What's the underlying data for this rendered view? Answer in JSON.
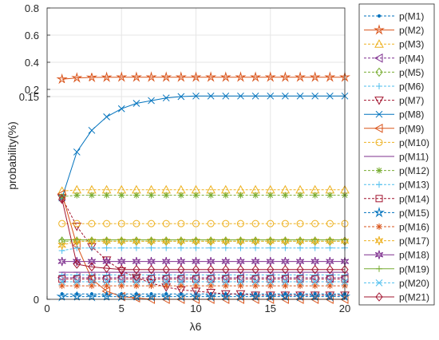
{
  "chart_data": {
    "type": "line",
    "xlabel": "λ6",
    "ylabel": "probability(%)",
    "x_ticks": [
      0,
      5,
      10,
      15,
      20
    ],
    "y_ticks_upper": [
      "0.2",
      "0.4",
      "0.6",
      "0.8"
    ],
    "y_ticks_lower": [
      "0",
      "0.15"
    ],
    "xlim": [
      0,
      20
    ],
    "grid": true,
    "legend": "right",
    "x": [
      1,
      2,
      3,
      4,
      5,
      6,
      7,
      8,
      9,
      10,
      11,
      12,
      13,
      14,
      15,
      16,
      17,
      18,
      19,
      20
    ],
    "series": [
      {
        "name": "p(M1)",
        "color": "#0072BD",
        "marker": "dot",
        "dashed": true,
        "values": [
          0.004,
          0.004,
          0.004,
          0.004,
          0.004,
          0.004,
          0.004,
          0.004,
          0.004,
          0.004,
          0.004,
          0.004,
          0.004,
          0.004,
          0.004,
          0.004,
          0.004,
          0.004,
          0.004,
          0.004
        ]
      },
      {
        "name": "p(M2)",
        "color": "#D95319",
        "marker": "star",
        "dashed": false,
        "values": [
          0.275,
          0.285,
          0.288,
          0.289,
          0.29,
          0.29,
          0.29,
          0.29,
          0.29,
          0.29,
          0.29,
          0.29,
          0.29,
          0.29,
          0.29,
          0.29,
          0.29,
          0.29,
          0.29,
          0.29
        ]
      },
      {
        "name": "p(M3)",
        "color": "#EDB120",
        "marker": "triangle-up",
        "dashed": true,
        "values": [
          0.08,
          0.081,
          0.081,
          0.081,
          0.081,
          0.081,
          0.081,
          0.081,
          0.081,
          0.081,
          0.081,
          0.081,
          0.081,
          0.081,
          0.081,
          0.081,
          0.081,
          0.081,
          0.081,
          0.081
        ]
      },
      {
        "name": "p(M4)",
        "color": "#7E2F8E",
        "marker": "triangle-left",
        "dashed": true,
        "values": [
          0.016,
          0.016,
          0.016,
          0.016,
          0.016,
          0.016,
          0.016,
          0.016,
          0.016,
          0.016,
          0.016,
          0.016,
          0.016,
          0.016,
          0.016,
          0.016,
          0.016,
          0.016,
          0.016,
          0.016
        ]
      },
      {
        "name": "p(M5)",
        "color": "#77AC30",
        "marker": "diamond",
        "dashed": true,
        "values": [
          0.043,
          0.043,
          0.043,
          0.043,
          0.043,
          0.043,
          0.043,
          0.043,
          0.043,
          0.043,
          0.043,
          0.043,
          0.043,
          0.043,
          0.043,
          0.043,
          0.043,
          0.043,
          0.043,
          0.043
        ]
      },
      {
        "name": "p(M6)",
        "color": "#4DBEEE",
        "marker": "plus",
        "dashed": true,
        "values": [
          0.018,
          0.018,
          0.018,
          0.018,
          0.018,
          0.018,
          0.018,
          0.018,
          0.018,
          0.018,
          0.018,
          0.018,
          0.018,
          0.018,
          0.018,
          0.018,
          0.018,
          0.018,
          0.018,
          0.018
        ]
      },
      {
        "name": "p(M7)",
        "color": "#A2142F",
        "marker": "triangle-down",
        "dashed": true,
        "values": [
          0.075,
          0.054,
          0.039,
          0.029,
          0.021,
          0.016,
          0.012,
          0.009,
          0.007,
          0.006,
          0.005,
          0.004,
          0.004,
          0.003,
          0.003,
          0.003,
          0.003,
          0.003,
          0.003,
          0.003
        ]
      },
      {
        "name": "p(M8)",
        "color": "#0072BD",
        "marker": "x",
        "dashed": false,
        "values": [
          0.075,
          0.109,
          0.125,
          0.135,
          0.141,
          0.145,
          0.147,
          0.149,
          0.15,
          0.151,
          0.151,
          0.151,
          0.151,
          0.151,
          0.151,
          0.151,
          0.151,
          0.151,
          0.151,
          0.151
        ]
      },
      {
        "name": "p(M9)",
        "color": "#D95319",
        "marker": "triangle-left",
        "dashed": false,
        "values": [
          0.078,
          0.04,
          0.015,
          0.006,
          0.002,
          0.001,
          0.0,
          0.0,
          0.0,
          0.0,
          0.0,
          0.0,
          0.0,
          0.0,
          0.0,
          0.0,
          0.0,
          0.0,
          0.0,
          0.0
        ]
      },
      {
        "name": "p(M10)",
        "color": "#EDB120",
        "marker": "circle",
        "dashed": true,
        "values": [
          0.056,
          0.056,
          0.056,
          0.056,
          0.056,
          0.056,
          0.056,
          0.056,
          0.056,
          0.056,
          0.056,
          0.056,
          0.056,
          0.056,
          0.056,
          0.056,
          0.056,
          0.056,
          0.056,
          0.056
        ]
      },
      {
        "name": "p(M11)",
        "color": "#7E2F8E",
        "marker": "line",
        "dashed": false,
        "values": [
          0.02,
          0.02,
          0.02,
          0.02,
          0.02,
          0.02,
          0.02,
          0.02,
          0.02,
          0.02,
          0.02,
          0.02,
          0.02,
          0.02,
          0.02,
          0.02,
          0.02,
          0.02,
          0.02,
          0.02
        ]
      },
      {
        "name": "p(M12)",
        "color": "#77AC30",
        "marker": "asterisk",
        "dashed": true,
        "values": [
          0.076,
          0.077,
          0.077,
          0.077,
          0.077,
          0.077,
          0.077,
          0.077,
          0.077,
          0.077,
          0.077,
          0.077,
          0.077,
          0.077,
          0.077,
          0.077,
          0.077,
          0.077,
          0.077,
          0.077
        ]
      },
      {
        "name": "p(M13)",
        "color": "#4DBEEE",
        "marker": "plus",
        "dashed": true,
        "values": [
          0.036,
          0.038,
          0.038,
          0.038,
          0.038,
          0.038,
          0.038,
          0.038,
          0.038,
          0.038,
          0.038,
          0.038,
          0.038,
          0.038,
          0.038,
          0.038,
          0.038,
          0.038,
          0.038,
          0.038
        ]
      },
      {
        "name": "p(M14)",
        "color": "#A2142F",
        "marker": "square",
        "dashed": true,
        "values": [
          0.015,
          0.015,
          0.015,
          0.015,
          0.015,
          0.015,
          0.015,
          0.015,
          0.015,
          0.015,
          0.015,
          0.015,
          0.015,
          0.015,
          0.015,
          0.015,
          0.015,
          0.015,
          0.015,
          0.015
        ]
      },
      {
        "name": "p(M15)",
        "color": "#0072BD",
        "marker": "star",
        "dashed": true,
        "values": [
          0.002,
          0.002,
          0.002,
          0.002,
          0.002,
          0.002,
          0.002,
          0.002,
          0.002,
          0.002,
          0.002,
          0.002,
          0.002,
          0.002,
          0.002,
          0.002,
          0.002,
          0.002,
          0.002,
          0.002
        ]
      },
      {
        "name": "p(M16)",
        "color": "#D95319",
        "marker": "asterisk",
        "dashed": true,
        "values": [
          0.01,
          0.01,
          0.01,
          0.01,
          0.01,
          0.01,
          0.01,
          0.01,
          0.01,
          0.01,
          0.01,
          0.01,
          0.01,
          0.01,
          0.01,
          0.01,
          0.01,
          0.01,
          0.01,
          0.01
        ]
      },
      {
        "name": "p(M17)",
        "color": "#EDB120",
        "marker": "hexagram",
        "dashed": true,
        "values": [
          0.04,
          0.043,
          0.043,
          0.043,
          0.043,
          0.043,
          0.043,
          0.043,
          0.043,
          0.043,
          0.043,
          0.043,
          0.043,
          0.043,
          0.043,
          0.043,
          0.043,
          0.043,
          0.043,
          0.043
        ]
      },
      {
        "name": "p(M18)",
        "color": "#7E2F8E",
        "marker": "hexagram",
        "dashed": false,
        "values": [
          0.028,
          0.028,
          0.028,
          0.028,
          0.028,
          0.028,
          0.028,
          0.028,
          0.028,
          0.028,
          0.028,
          0.028,
          0.028,
          0.028,
          0.028,
          0.028,
          0.028,
          0.028,
          0.028,
          0.028
        ]
      },
      {
        "name": "p(M19)",
        "color": "#77AC30",
        "marker": "plus",
        "dashed": false,
        "values": [
          0.044,
          0.044,
          0.044,
          0.044,
          0.044,
          0.044,
          0.044,
          0.044,
          0.044,
          0.044,
          0.044,
          0.044,
          0.044,
          0.044,
          0.044,
          0.044,
          0.044,
          0.044,
          0.044,
          0.044
        ]
      },
      {
        "name": "p(M20)",
        "color": "#4DBEEE",
        "marker": "x",
        "dashed": true,
        "values": [
          0.013,
          0.013,
          0.013,
          0.013,
          0.013,
          0.013,
          0.013,
          0.013,
          0.013,
          0.013,
          0.013,
          0.013,
          0.013,
          0.013,
          0.013,
          0.013,
          0.013,
          0.013,
          0.013,
          0.013
        ]
      },
      {
        "name": "p(M21)",
        "color": "#A2142F",
        "marker": "diamond",
        "dashed": false,
        "values": [
          0.074,
          0.026,
          0.024,
          0.023,
          0.022,
          0.022,
          0.022,
          0.022,
          0.022,
          0.022,
          0.022,
          0.022,
          0.022,
          0.022,
          0.022,
          0.022,
          0.022,
          0.022,
          0.022,
          0.022
        ]
      }
    ]
  }
}
